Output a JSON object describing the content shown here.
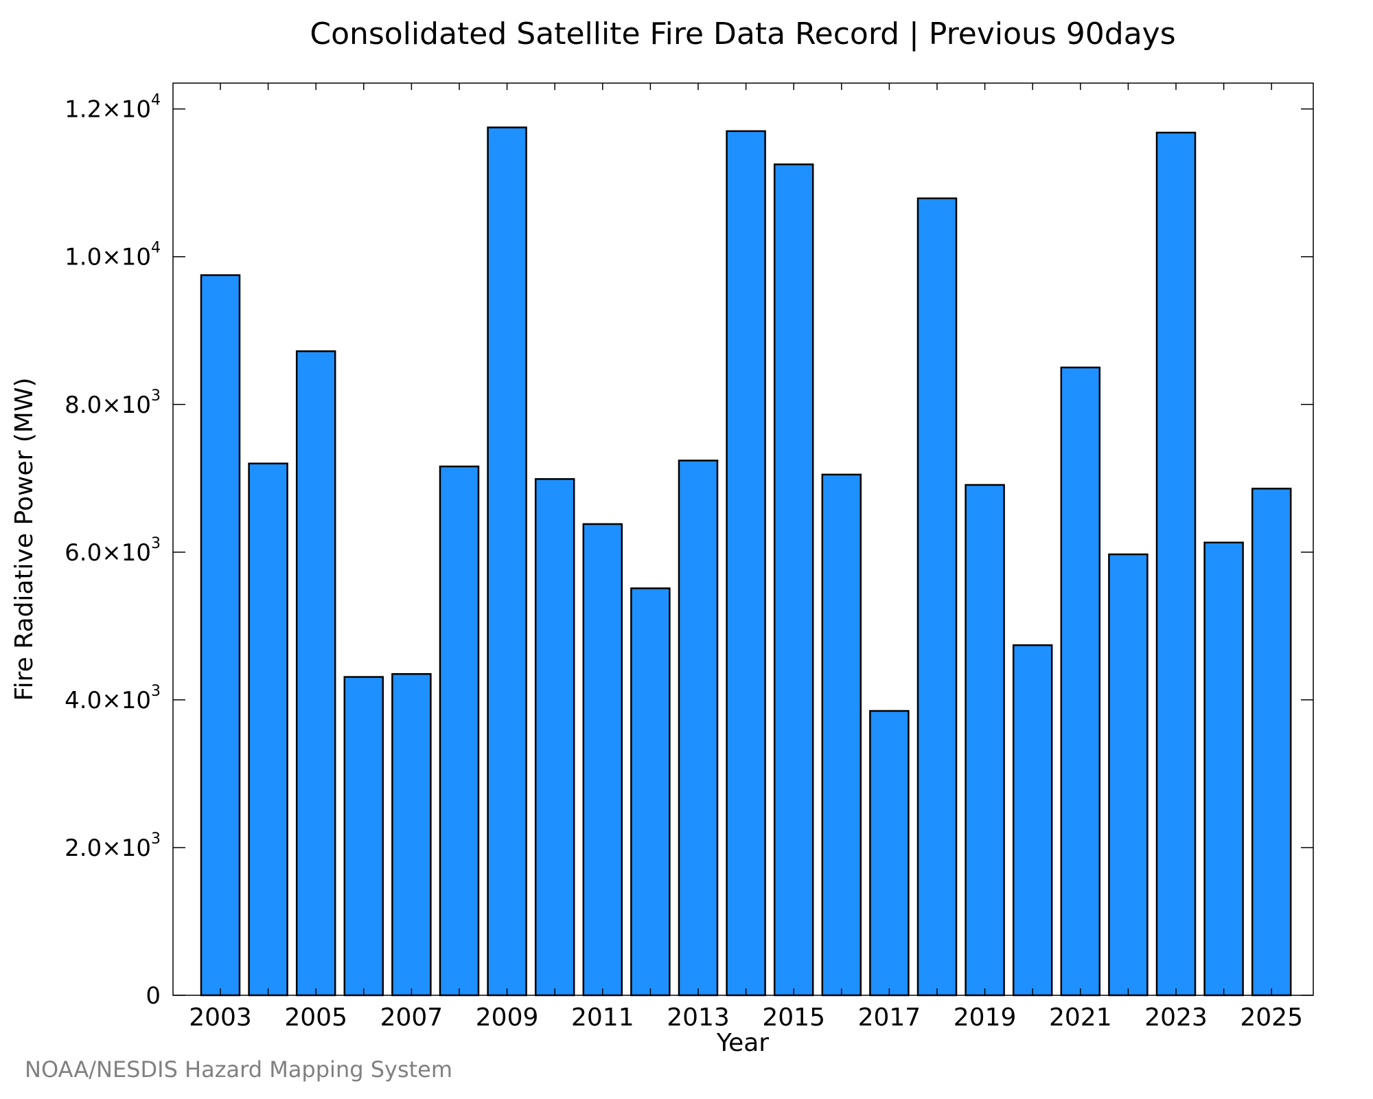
{
  "chart_data": {
    "type": "bar",
    "title": "Consolidated Satellite Fire Data Record | Previous 90days",
    "xlabel": "Year",
    "ylabel": "Fire Radiative Power (MW)",
    "categories": [
      "2003",
      "2004",
      "2005",
      "2006",
      "2007",
      "2008",
      "2009",
      "2010",
      "2011",
      "2012",
      "2013",
      "2014",
      "2015",
      "2016",
      "2017",
      "2018",
      "2019",
      "2020",
      "2021",
      "2022",
      "2023",
      "2024",
      "2025"
    ],
    "values": [
      9750,
      7200,
      8720,
      4310,
      4350,
      7160,
      11750,
      6990,
      6380,
      5510,
      7240,
      11700,
      11250,
      7050,
      3850,
      10790,
      6910,
      4740,
      8500,
      5970,
      11680,
      6130,
      6860
    ],
    "x_tick_labels": [
      "2003",
      "2005",
      "2007",
      "2009",
      "2011",
      "2013",
      "2015",
      "2017",
      "2019",
      "2021",
      "2023",
      "2025"
    ],
    "y_ticks": [
      {
        "value": 0,
        "mantissa": "0",
        "exponent": ""
      },
      {
        "value": 2000,
        "mantissa": "2.0×10",
        "exponent": "3"
      },
      {
        "value": 4000,
        "mantissa": "4.0×10",
        "exponent": "3"
      },
      {
        "value": 6000,
        "mantissa": "6.0×10",
        "exponent": "3"
      },
      {
        "value": 8000,
        "mantissa": "8.0×10",
        "exponent": "3"
      },
      {
        "value": 10000,
        "mantissa": "1.0×10",
        "exponent": "4"
      },
      {
        "value": 12000,
        "mantissa": "1.2×10",
        "exponent": "4"
      }
    ],
    "ylim": [
      0,
      12350
    ],
    "bar_color": "#1E90FF",
    "edge_color": "#000000",
    "grid": false,
    "legend": "none"
  },
  "footer": {
    "credit": "NOAA/NESDIS Hazard Mapping System"
  }
}
